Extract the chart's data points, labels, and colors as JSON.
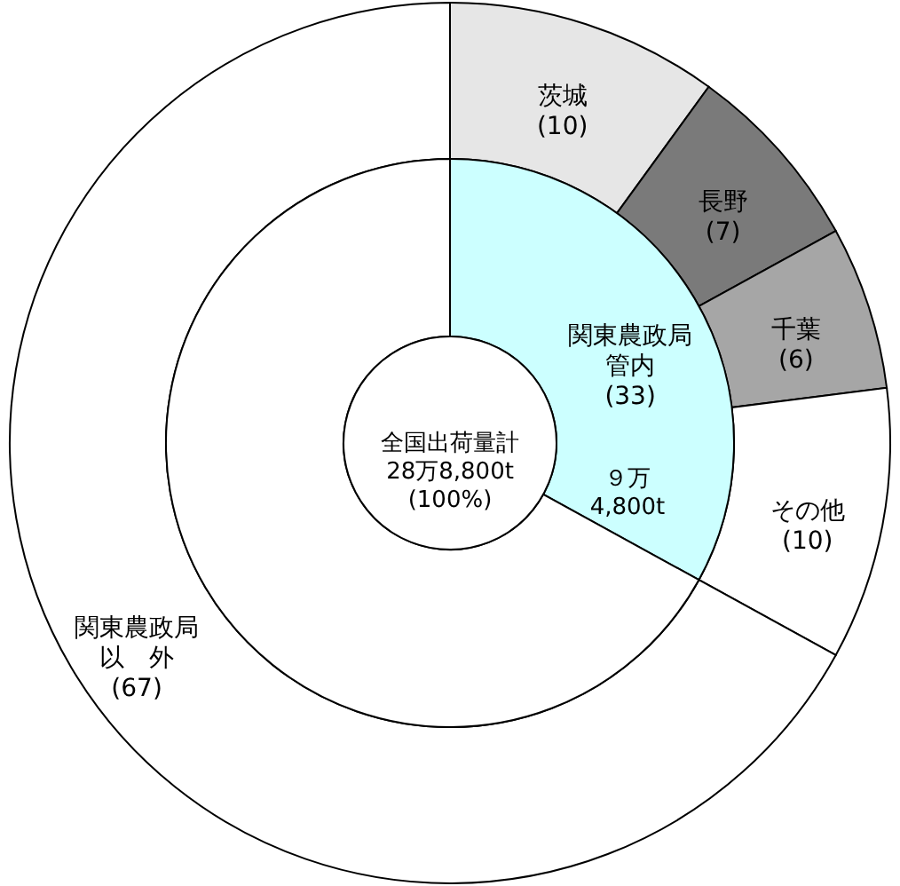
{
  "chart_data": {
    "type": "donut",
    "categories": [
      "茨城",
      "長野",
      "千葉",
      "その他",
      "関東農政局以　外"
    ],
    "values": [
      10,
      7,
      6,
      10,
      67
    ],
    "value_labels": [
      "(10)",
      "(7)",
      "(6)",
      "(10)",
      "(67)"
    ],
    "colors": [
      "#e6e6e6",
      "#7a7a7a",
      "#a6a6a6",
      "#ffffff",
      "#ffffff"
    ],
    "series": [
      {
        "name": "関東農政局管内",
        "values": [
          33,
          null,
          null,
          null,
          67
        ],
        "value_labels": [
          "(33)",
          null,
          null,
          null,
          null
        ],
        "colors": [
          "#ccffff",
          null,
          null,
          null,
          "#ffffff"
        ]
      }
    ],
    "annotations": [
      "全国出荷量計\n28万8,800t\n(100%)",
      "９万\n4,800t"
    ]
  }
}
